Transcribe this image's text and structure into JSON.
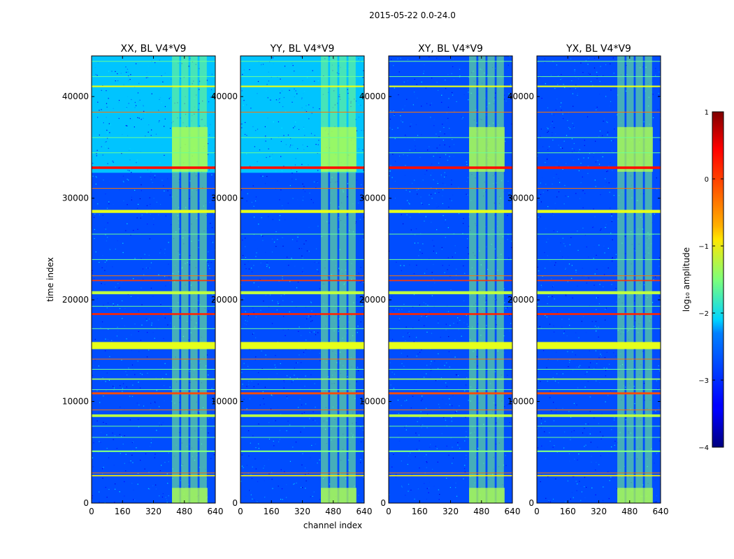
{
  "figure": {
    "title": "2015-05-22 0.0-24.0"
  },
  "chart_data": {
    "type": "heatmap",
    "title": "2015-05-22 0.0-24.0",
    "xlabel": "channel index",
    "ylabel": "time index",
    "xlim": [
      0,
      640
    ],
    "ylim": [
      0,
      44000
    ],
    "xticks": [
      0,
      160,
      320,
      480,
      640
    ],
    "yticks": [
      0,
      10000,
      20000,
      30000,
      40000
    ],
    "panels": [
      {
        "name": "XX",
        "title": "XX, BL V4*V9"
      },
      {
        "name": "YY",
        "title": "YY, BL V4*V9"
      },
      {
        "name": "XY",
        "title": "XY, BL V4*V9"
      },
      {
        "name": "YX",
        "title": "YX, BL V4*V9"
      }
    ],
    "colorbar": {
      "label": "log₁₀ amplitude",
      "range": [
        -4,
        1
      ],
      "ticks": [
        1,
        0,
        -1,
        -2,
        -3,
        -4
      ],
      "colormap": "jet"
    },
    "features": {
      "bright_channel_band": [
        410,
        600
      ],
      "background_level": -3.0,
      "band_level": -1.5,
      "bright_lines": [
        {
          "t": 15500,
          "width": 700,
          "level": -1.0
        },
        {
          "t": 18600,
          "width": 180,
          "level": 0.2
        },
        {
          "t": 20700,
          "width": 300,
          "level": -1.2
        },
        {
          "t": 21900,
          "width": 120,
          "level": 0.1
        },
        {
          "t": 28700,
          "width": 300,
          "level": -1.0
        },
        {
          "t": 33000,
          "width": 250,
          "level": 0.3
        },
        {
          "t": 8600,
          "width": 250,
          "level": -1.2
        },
        {
          "t": 10800,
          "width": 200,
          "level": 0.0
        },
        {
          "t": 12200,
          "width": 120,
          "level": -1.3
        },
        {
          "t": 2700,
          "width": 120,
          "level": -0.8
        },
        {
          "t": 41000,
          "width": 150,
          "level": -1.0
        },
        {
          "t": 5100,
          "width": 150,
          "level": -1.5
        }
      ]
    }
  }
}
